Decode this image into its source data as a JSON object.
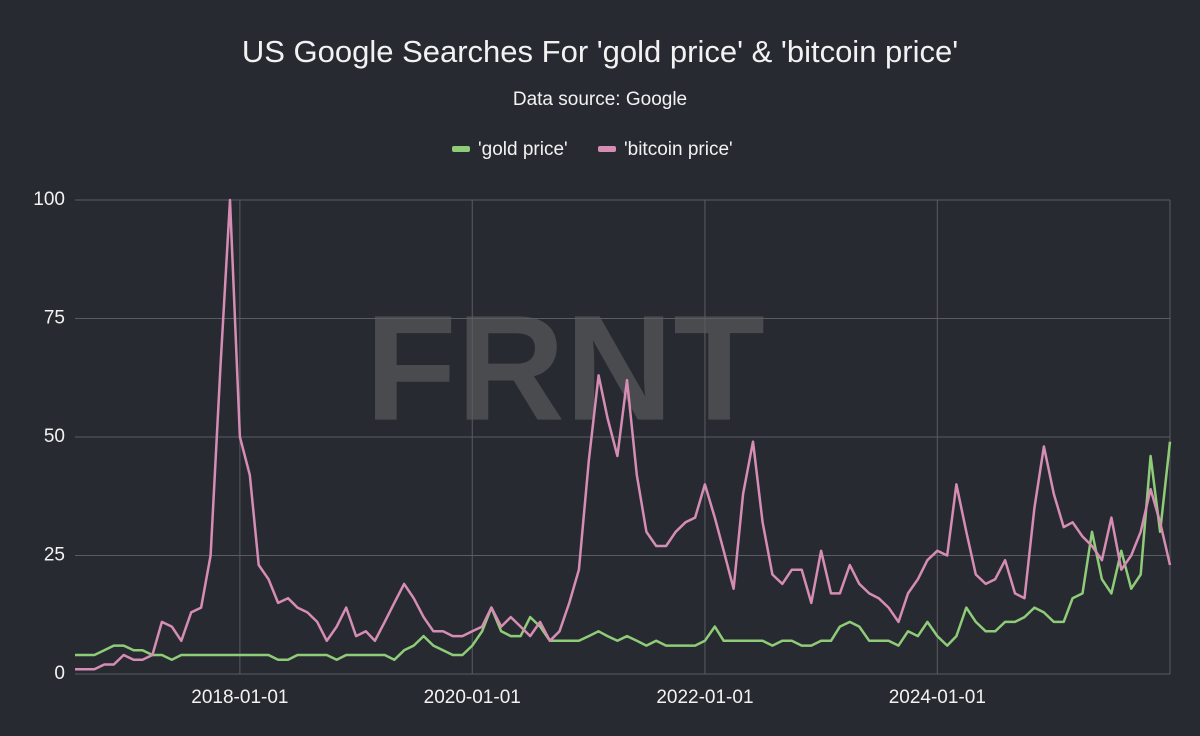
{
  "chart_data": {
    "type": "line",
    "title": "US Google Searches For 'gold price' & 'bitcoin price'",
    "subtitle": "Data source: Google",
    "watermark": "FRNT",
    "legend": "top",
    "grid": true,
    "x": [
      "2016-08-01",
      "2016-09-01",
      "2016-10-01",
      "2016-11-01",
      "2016-12-01",
      "2017-01-01",
      "2017-02-01",
      "2017-03-01",
      "2017-04-01",
      "2017-05-01",
      "2017-06-01",
      "2017-07-01",
      "2017-08-01",
      "2017-09-01",
      "2017-10-01",
      "2017-11-01",
      "2017-12-01",
      "2018-01-01",
      "2018-02-01",
      "2018-03-01",
      "2018-04-01",
      "2018-05-01",
      "2018-06-01",
      "2018-07-01",
      "2018-08-01",
      "2018-09-01",
      "2018-10-01",
      "2018-11-01",
      "2018-12-01",
      "2019-01-01",
      "2019-02-01",
      "2019-03-01",
      "2019-04-01",
      "2019-05-01",
      "2019-06-01",
      "2019-07-01",
      "2019-08-01",
      "2019-09-01",
      "2019-10-01",
      "2019-11-01",
      "2019-12-01",
      "2020-01-01",
      "2020-02-01",
      "2020-03-01",
      "2020-04-01",
      "2020-05-01",
      "2020-06-01",
      "2020-07-01",
      "2020-08-01",
      "2020-09-01",
      "2020-10-01",
      "2020-11-01",
      "2020-12-01",
      "2021-01-01",
      "2021-02-01",
      "2021-03-01",
      "2021-04-01",
      "2021-05-01",
      "2021-06-01",
      "2021-07-01",
      "2021-08-01",
      "2021-09-01",
      "2021-10-01",
      "2021-11-01",
      "2021-12-01",
      "2022-01-01",
      "2022-02-01",
      "2022-03-01",
      "2022-04-01",
      "2022-05-01",
      "2022-06-01",
      "2022-07-01",
      "2022-08-01",
      "2022-09-01",
      "2022-10-01",
      "2022-11-01",
      "2022-12-01",
      "2023-01-01",
      "2023-02-01",
      "2023-03-01",
      "2023-04-01",
      "2023-05-01",
      "2023-06-01",
      "2023-07-01",
      "2023-08-01",
      "2023-09-01",
      "2023-10-01",
      "2023-11-01",
      "2023-12-01",
      "2024-01-01",
      "2024-02-01",
      "2024-03-01",
      "2024-04-01",
      "2024-05-01",
      "2024-06-01",
      "2024-07-01",
      "2024-08-01",
      "2024-09-01",
      "2024-10-01",
      "2024-11-01",
      "2024-12-01",
      "2025-01-01",
      "2025-02-01",
      "2025-03-01",
      "2025-04-01",
      "2025-05-01",
      "2025-06-01",
      "2025-07-01",
      "2025-08-01",
      "2025-09-01",
      "2025-10-01",
      "2025-11-01",
      "2025-12-01",
      "2026-01-01"
    ],
    "series": [
      {
        "name": "'gold price'",
        "color": "#8fcc78",
        "values": [
          4,
          4,
          4,
          5,
          6,
          6,
          5,
          5,
          4,
          4,
          3,
          4,
          4,
          4,
          4,
          4,
          4,
          4,
          4,
          4,
          4,
          3,
          3,
          4,
          4,
          4,
          4,
          3,
          4,
          4,
          4,
          4,
          4,
          3,
          5,
          6,
          8,
          6,
          5,
          4,
          4,
          6,
          9,
          14,
          9,
          8,
          8,
          12,
          10,
          7,
          7,
          7,
          7,
          8,
          9,
          8,
          7,
          8,
          7,
          6,
          7,
          6,
          6,
          6,
          6,
          7,
          10,
          7,
          7,
          7,
          7,
          7,
          6,
          7,
          7,
          6,
          6,
          7,
          7,
          10,
          11,
          10,
          7,
          7,
          7,
          6,
          9,
          8,
          11,
          8,
          6,
          8,
          14,
          11,
          9,
          9,
          11,
          11,
          12,
          14,
          13,
          11,
          11,
          16,
          17,
          30,
          20,
          17,
          26,
          18,
          21,
          46,
          30,
          49
        ]
      },
      {
        "name": "'bitcoin price'",
        "color": "#d68db4",
        "values": [
          1,
          1,
          1,
          2,
          2,
          4,
          3,
          3,
          4,
          11,
          10,
          7,
          13,
          14,
          25,
          65,
          100,
          50,
          42,
          23,
          20,
          15,
          16,
          14,
          13,
          11,
          7,
          10,
          14,
          8,
          9,
          7,
          11,
          15,
          19,
          16,
          12,
          9,
          9,
          8,
          8,
          9,
          10,
          14,
          10,
          12,
          10,
          8,
          11,
          7,
          9,
          15,
          22,
          45,
          63,
          54,
          46,
          62,
          42,
          30,
          27,
          27,
          30,
          32,
          33,
          40,
          33,
          26,
          18,
          38,
          49,
          32,
          21,
          19,
          22,
          22,
          15,
          26,
          17,
          17,
          23,
          19,
          17,
          16,
          14,
          11,
          17,
          20,
          24,
          26,
          25,
          40,
          30,
          21,
          19,
          20,
          24,
          17,
          16,
          35,
          48,
          38,
          31,
          32,
          29,
          27,
          24,
          33,
          22,
          25,
          30,
          39,
          32,
          23
        ]
      }
    ],
    "xlim": [
      "2016-08-01",
      "2026-01-01"
    ],
    "xticks": [
      "2018-01-01",
      "2020-01-01",
      "2022-01-01",
      "2024-01-01"
    ],
    "ylim": [
      0,
      100
    ],
    "yticks": [
      0,
      25,
      50,
      75,
      100
    ]
  }
}
